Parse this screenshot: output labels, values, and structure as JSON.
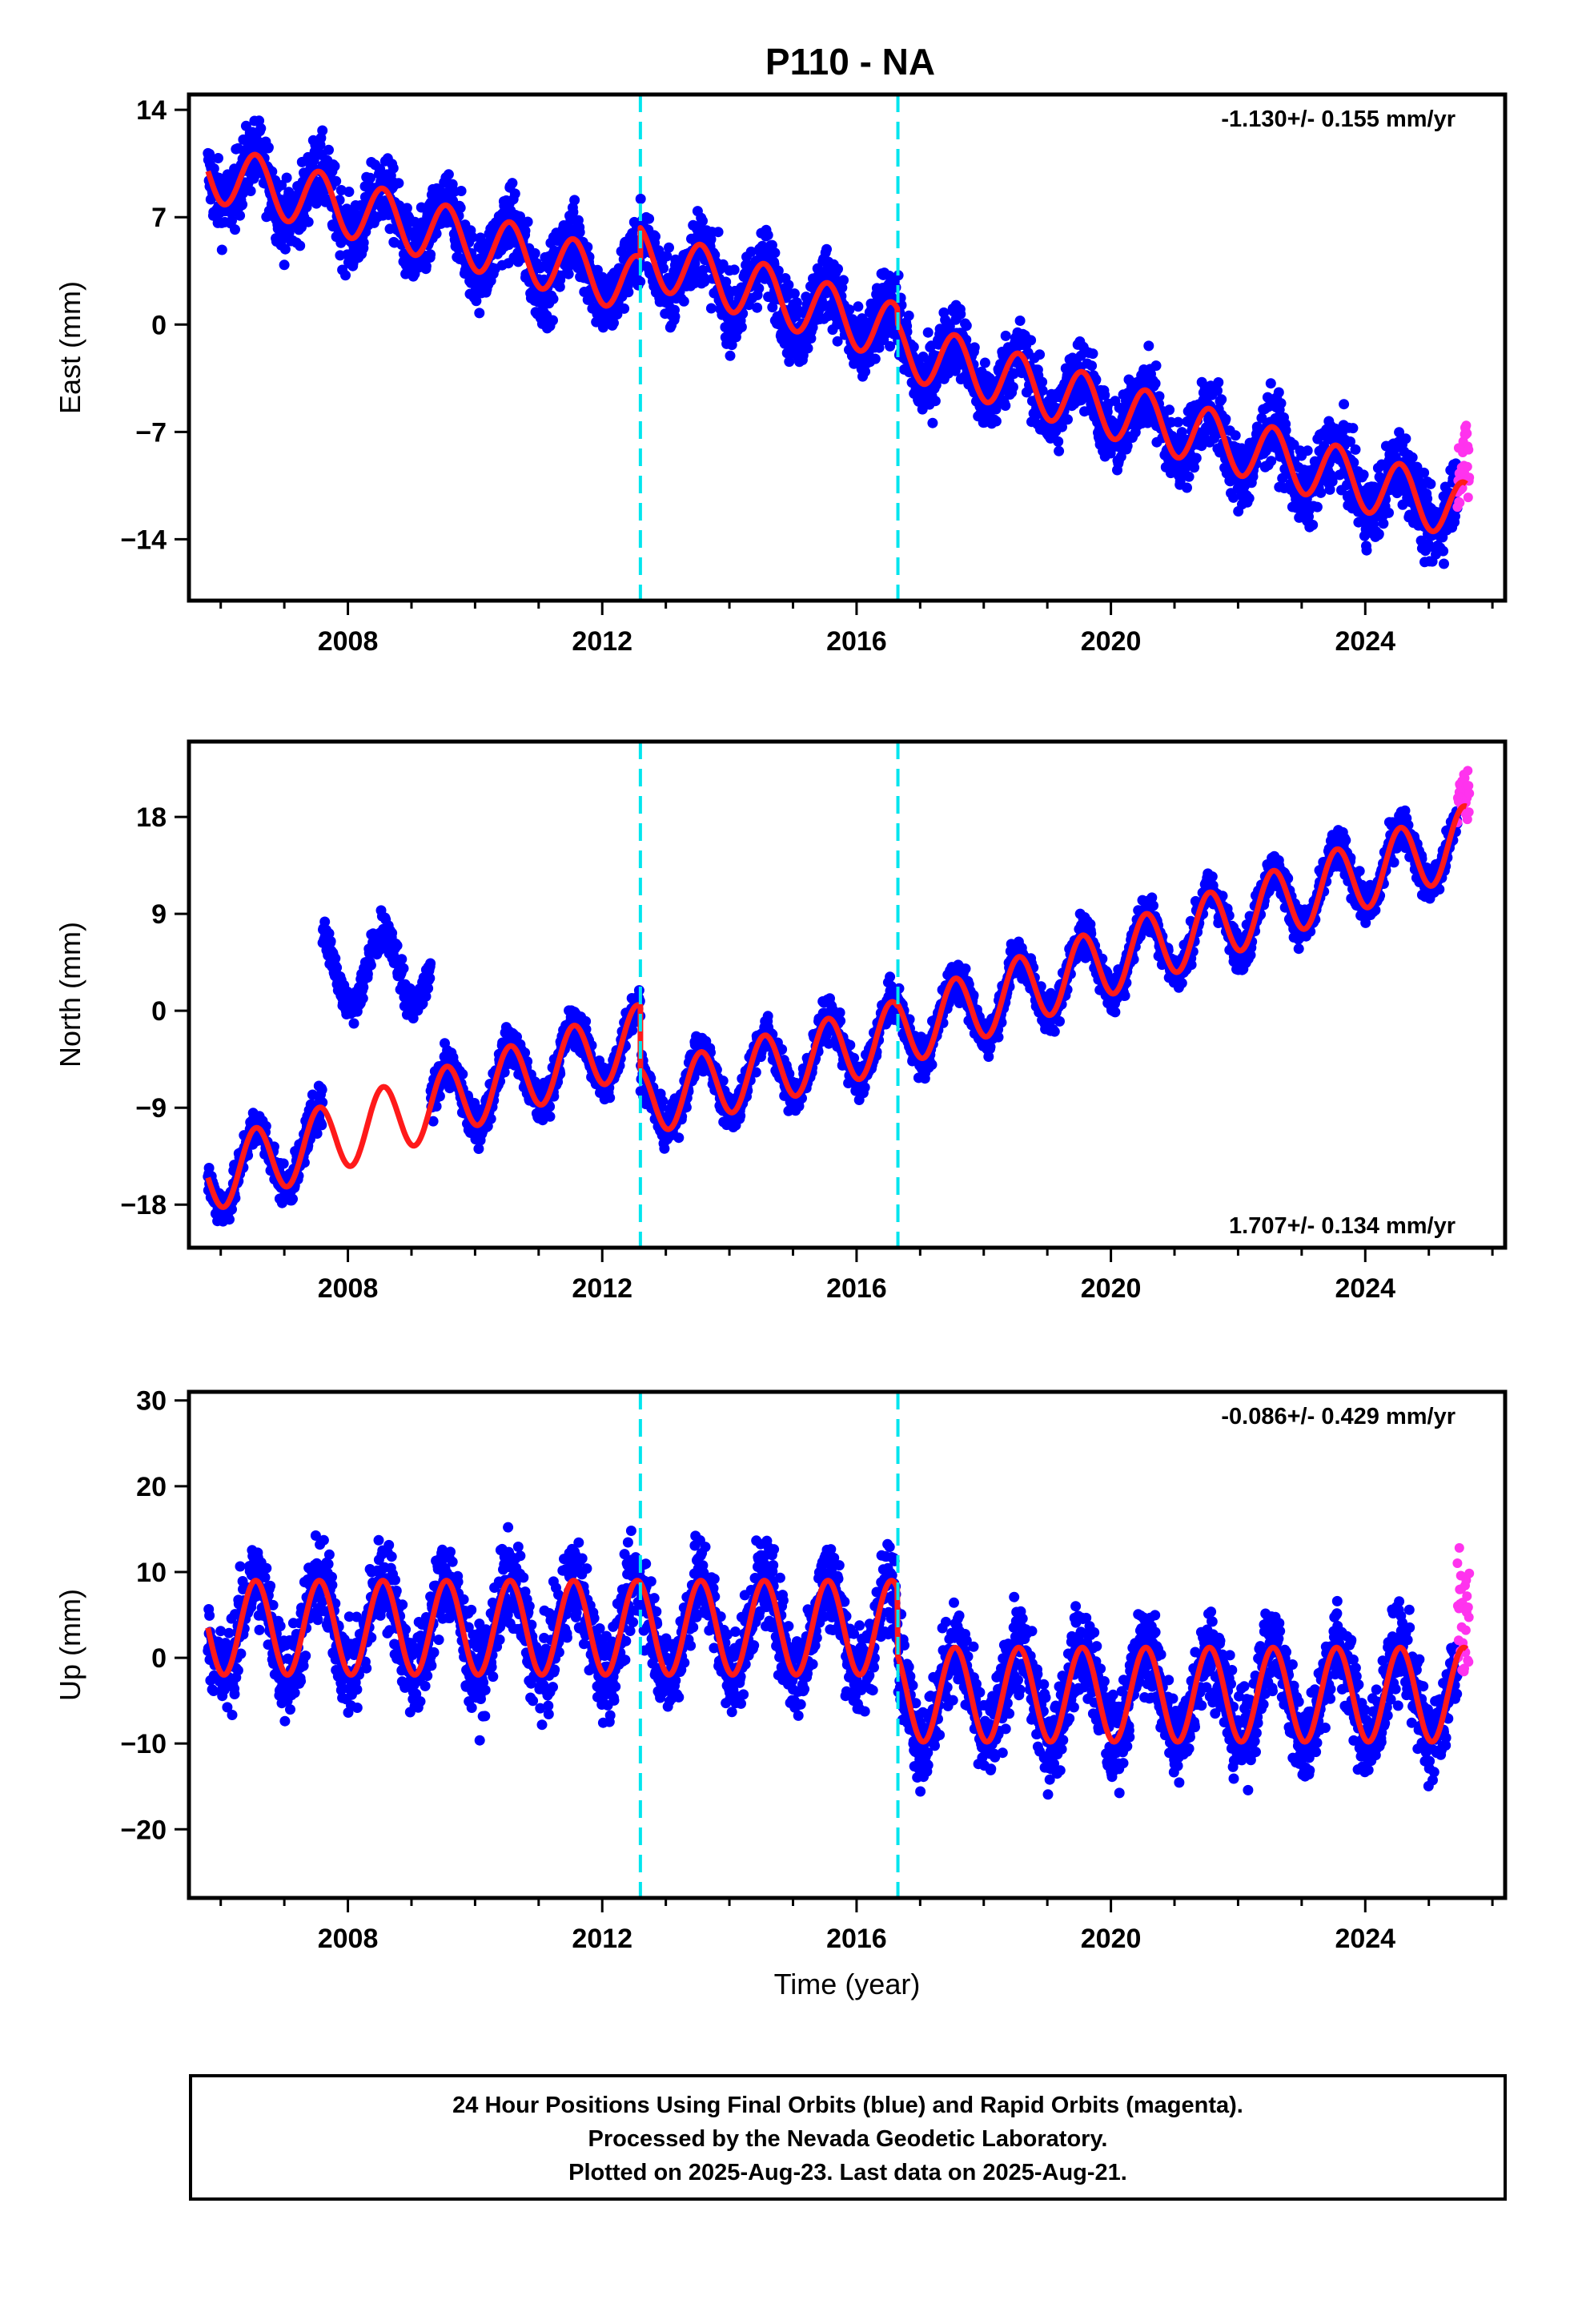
{
  "title": "P110 - NA",
  "colors": {
    "final_orbits": "#0000ff",
    "rapid_orbits": "#ff33ee",
    "model_fit": "#ff1a1a",
    "event_lines": "#00e5ee",
    "frame": "#000000"
  },
  "chart_data": [
    {
      "type": "scatter",
      "component": "East",
      "ylabel": "East (mm)",
      "xlabel": "",
      "xlim": [
        2005.5,
        2026.2
      ],
      "ylim": [
        -18,
        15
      ],
      "xticks": [
        "2008",
        "2012",
        "2016",
        "2020",
        "2024"
      ],
      "yticks": [
        "14",
        "7",
        "0",
        "−7",
        "−14"
      ],
      "ytick_values": [
        14,
        7,
        0,
        -7,
        -14
      ],
      "rate_label": "-1.130+/- 0.155 mm/yr",
      "rate_position": "top-right",
      "event_lines_x": [
        2012.6,
        2016.65
      ],
      "rate_mm_per_yr": -1.13,
      "seasonal_amplitude_mm": 1.9,
      "model_segments": [
        {
          "x_start": 2005.8,
          "x_end": 2012.6,
          "y_start": 10.0,
          "slope": -1.1
        },
        {
          "x_start": 2012.6,
          "x_end": 2016.65,
          "y_start": 4.5,
          "slope": -1.25
        },
        {
          "x_start": 2016.65,
          "x_end": 2025.6,
          "y_start": -1.5,
          "slope": -1.2
        }
      ],
      "final_orbit_range": [
        2005.8,
        2025.45
      ],
      "rapid_orbit_range": [
        2025.45,
        2025.64
      ],
      "scatter_mm": 1.8,
      "grid": false
    },
    {
      "type": "scatter",
      "component": "North",
      "ylabel": "North (mm)",
      "xlabel": "",
      "xlim": [
        2005.5,
        2026.2
      ],
      "ylim": [
        -22,
        25
      ],
      "xticks": [
        "2008",
        "2012",
        "2016",
        "2020",
        "2024"
      ],
      "yticks": [
        "18",
        "9",
        "0",
        "−9",
        "−18"
      ],
      "ytick_values": [
        18,
        9,
        0,
        -9,
        -18
      ],
      "rate_label": "1.707+/- 0.134 mm/yr",
      "rate_position": "bottom-right",
      "event_lines_x": [
        2012.6,
        2016.65
      ],
      "rate_mm_per_yr": 1.707,
      "seasonal_amplitude_mm": 3.2,
      "model_segments": [
        {
          "x_start": 2005.8,
          "x_end": 2012.6,
          "y_start": -15.5,
          "slope": 1.9
        },
        {
          "x_start": 2012.6,
          "x_end": 2016.65,
          "y_start": -8.5,
          "slope": 1.55
        },
        {
          "x_start": 2016.65,
          "x_end": 2025.6,
          "y_start": -2.0,
          "slope": 2.0
        }
      ],
      "outlier_cluster": {
        "x_start": 2007.6,
        "x_end": 2009.3,
        "y_center": 4.0
      },
      "final_orbit_range": [
        2005.8,
        2025.45
      ],
      "rapid_orbit_range": [
        2025.45,
        2025.64
      ],
      "scatter_mm": 1.4,
      "grid": false
    },
    {
      "type": "scatter",
      "component": "Up",
      "ylabel": "Up (mm)",
      "xlabel": "Time (year)",
      "xlim": [
        2005.5,
        2026.2
      ],
      "ylim": [
        -28,
        31
      ],
      "xticks": [
        "2008",
        "2012",
        "2016",
        "2020",
        "2024"
      ],
      "yticks": [
        "30",
        "20",
        "10",
        "0",
        "−10",
        "−20"
      ],
      "ytick_values": [
        30,
        20,
        10,
        0,
        -10,
        -20
      ],
      "rate_label": "-0.086+/- 0.429 mm/yr",
      "rate_position": "top-right",
      "event_lines_x": [
        2012.6,
        2016.65
      ],
      "rate_mm_per_yr": -0.086,
      "seasonal_amplitude_mm": 5.5,
      "model_segments": [
        {
          "x_start": 2005.8,
          "x_end": 2016.65,
          "y_start": 3.5,
          "slope": 0.0
        },
        {
          "x_start": 2016.65,
          "x_end": 2025.6,
          "y_start": -4.3,
          "slope": 0.0
        }
      ],
      "final_orbit_range": [
        2005.8,
        2025.45
      ],
      "rapid_orbit_range": [
        2025.45,
        2025.64
      ],
      "scatter_mm": 4.0,
      "grid": false
    }
  ],
  "caption": {
    "line1": "24 Hour Positions Using Final Orbits (blue) and Rapid Orbits (magenta).",
    "line2": "Processed by the Nevada Geodetic Laboratory.",
    "line3": "Plotted on 2025-Aug-23. Last data on 2025-Aug-21."
  }
}
